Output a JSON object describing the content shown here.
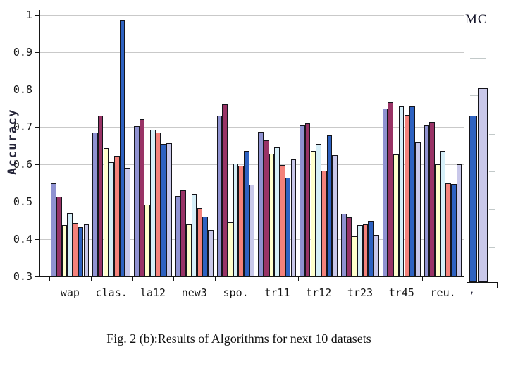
{
  "figure": {
    "caption": "Fig. 2 (b):Results of Algorithms for next 10 datasets",
    "legend_fragment_text": "MC",
    "sliver_tick_label": ","
  },
  "chart_data": {
    "type": "bar",
    "title": "",
    "xlabel": "",
    "ylabel": "Accuracy",
    "ylim": [
      0.3,
      1.0
    ],
    "ytick_interval": 0.1,
    "ytick_labels": [
      "1",
      "0.9",
      "0.8",
      "0.7",
      "0.6",
      "0.5",
      "0.4",
      "0.3"
    ],
    "grid": "horizontal",
    "legend_position": "cut off at right edge; only fragment 'MC' visible at top-right",
    "categories": [
      "wap",
      "clas.",
      "la12",
      "new3",
      "spo.",
      "tr11",
      "tr12",
      "tr23",
      "tr45",
      "reu."
    ],
    "series": [
      {
        "name": "series-1-periwinkle",
        "color": "#8F92D1",
        "values": [
          0.55,
          0.685,
          0.702,
          0.515,
          0.73,
          0.687,
          0.705,
          0.468,
          0.75,
          0.706
        ]
      },
      {
        "name": "series-2-plum",
        "color": "#993366",
        "values": [
          0.513,
          0.73,
          0.72,
          0.53,
          0.76,
          0.665,
          0.71,
          0.458,
          0.766,
          0.713
        ]
      },
      {
        "name": "series-3-pale-yellow",
        "color": "#FFFFCC",
        "values": [
          0.437,
          0.643,
          0.493,
          0.44,
          0.445,
          0.628,
          0.635,
          0.408,
          0.626,
          0.6
        ]
      },
      {
        "name": "series-4-pale-cyan",
        "color": "#D6EFF8",
        "values": [
          0.47,
          0.605,
          0.692,
          0.52,
          0.602,
          0.645,
          0.655,
          0.438,
          0.756,
          0.635
        ]
      },
      {
        "name": "series-5-salmon",
        "color": "#F4827B",
        "values": [
          0.443,
          0.622,
          0.685,
          0.483,
          0.597,
          0.598,
          0.583,
          0.44,
          0.733,
          0.55
        ]
      },
      {
        "name": "series-6-blue",
        "color": "#2E62C1",
        "values": [
          0.433,
          0.985,
          0.655,
          0.46,
          0.635,
          0.565,
          0.678,
          0.447,
          0.757,
          0.547
        ]
      },
      {
        "name": "series-7-lavender",
        "color": "#C9C8EA",
        "values": [
          0.44,
          0.59,
          0.657,
          0.425,
          0.545,
          0.613,
          0.625,
          0.412,
          0.658,
          0.6
        ]
      }
    ],
    "adjacent_chart_sliver": {
      "description": "partial bars of neighbouring figure visible at right edge",
      "bars": [
        {
          "color": "#2E62C1",
          "value": 0.731
        },
        {
          "color": "#C9C8EA",
          "value": 0.803
        }
      ]
    }
  }
}
